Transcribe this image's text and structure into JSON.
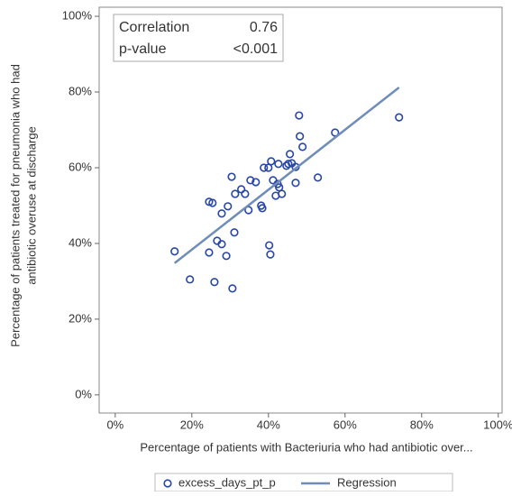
{
  "chart_data": {
    "type": "scatter",
    "xlabel": "Percentage of patients with Bacteriuria who had antibiotic over...",
    "ylabel": [
      "Percentage of patients treated for pneumonia who had",
      "antibiotic overuse at discharge"
    ],
    "xlim": [
      -4.2,
      101
    ],
    "ylim": [
      -4.8,
      102.4
    ],
    "xticks": [
      {
        "value": 0,
        "label": "0%"
      },
      {
        "value": 20,
        "label": "20%"
      },
      {
        "value": 40,
        "label": "40%"
      },
      {
        "value": 60,
        "label": "60%"
      },
      {
        "value": 80,
        "label": "80%"
      },
      {
        "value": 100,
        "label": "100%"
      }
    ],
    "yticks": [
      {
        "value": 0,
        "label": "0%"
      },
      {
        "value": 20,
        "label": "20%"
      },
      {
        "value": 40,
        "label": "40%"
      },
      {
        "value": 60,
        "label": "60%"
      },
      {
        "value": 80,
        "label": "80%"
      },
      {
        "value": 100,
        "label": "100%"
      }
    ],
    "stats": [
      [
        "Correlation",
        "0.76"
      ],
      [
        "p-value",
        "<0.001"
      ]
    ],
    "series": [
      {
        "name": "excess_days_pt_p",
        "type": "scatter",
        "color": "#2746a6",
        "x": [
          15.5,
          19.5,
          24.5,
          24.5,
          25.4,
          25.9,
          26.6,
          27.8,
          27.8,
          29,
          29.4,
          30.4,
          30.6,
          31.1,
          31.3,
          32.9,
          33.9,
          34.8,
          35.3,
          36.7,
          38.1,
          38.4,
          38.8,
          40,
          40.2,
          40.5,
          40.7,
          41.2,
          41.9,
          42.4,
          42.6,
          42.8,
          43.5,
          44.7,
          45.2,
          45.6,
          46.1,
          47.1,
          47.1,
          48,
          48.2,
          48.9,
          52.9,
          57.4,
          74.1
        ],
        "values": [
          37.9,
          30.5,
          37.6,
          51,
          50.7,
          29.8,
          40.7,
          39.8,
          47.9,
          36.7,
          49.8,
          57.6,
          28.1,
          42.9,
          53.1,
          54.3,
          53.1,
          48.8,
          56.7,
          56.2,
          50,
          49.3,
          60,
          60,
          39.5,
          37.1,
          61.7,
          56.7,
          52.6,
          55.7,
          61,
          54.8,
          53.1,
          60.5,
          61,
          63.6,
          61.2,
          60.2,
          56,
          73.8,
          68.3,
          65.5,
          57.4,
          69.3,
          73.3
        ]
      },
      {
        "name": "Regression",
        "type": "line",
        "color": "#6f8db8",
        "x": [
          15.5,
          74.1
        ],
        "values": [
          34.8,
          81.2
        ]
      }
    ]
  }
}
